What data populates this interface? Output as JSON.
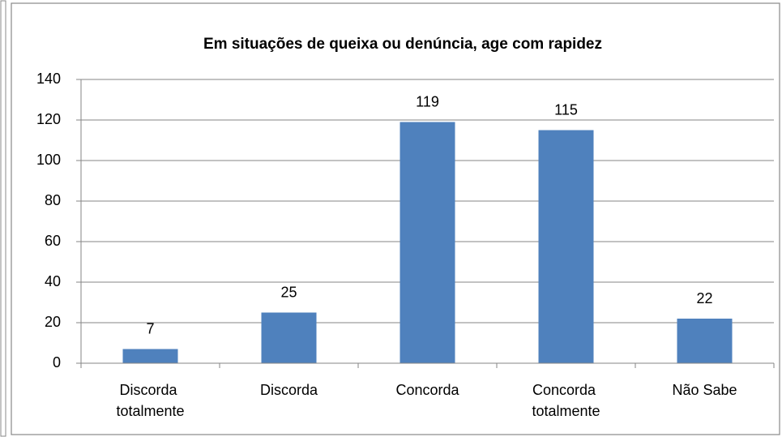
{
  "chart_data": {
    "type": "bar",
    "title": "Em situações de queixa ou denúncia, age com rapidez",
    "categories": [
      "Discorda totalmente",
      "Discorda",
      "Concorda",
      "Concorda totalmente",
      "Não Sabe"
    ],
    "values": [
      7,
      25,
      119,
      115,
      22
    ],
    "color": "#4f81bd",
    "ylim": [
      0,
      140
    ],
    "yticks": [
      0,
      20,
      40,
      60,
      80,
      100,
      120,
      140
    ],
    "grid": true
  }
}
